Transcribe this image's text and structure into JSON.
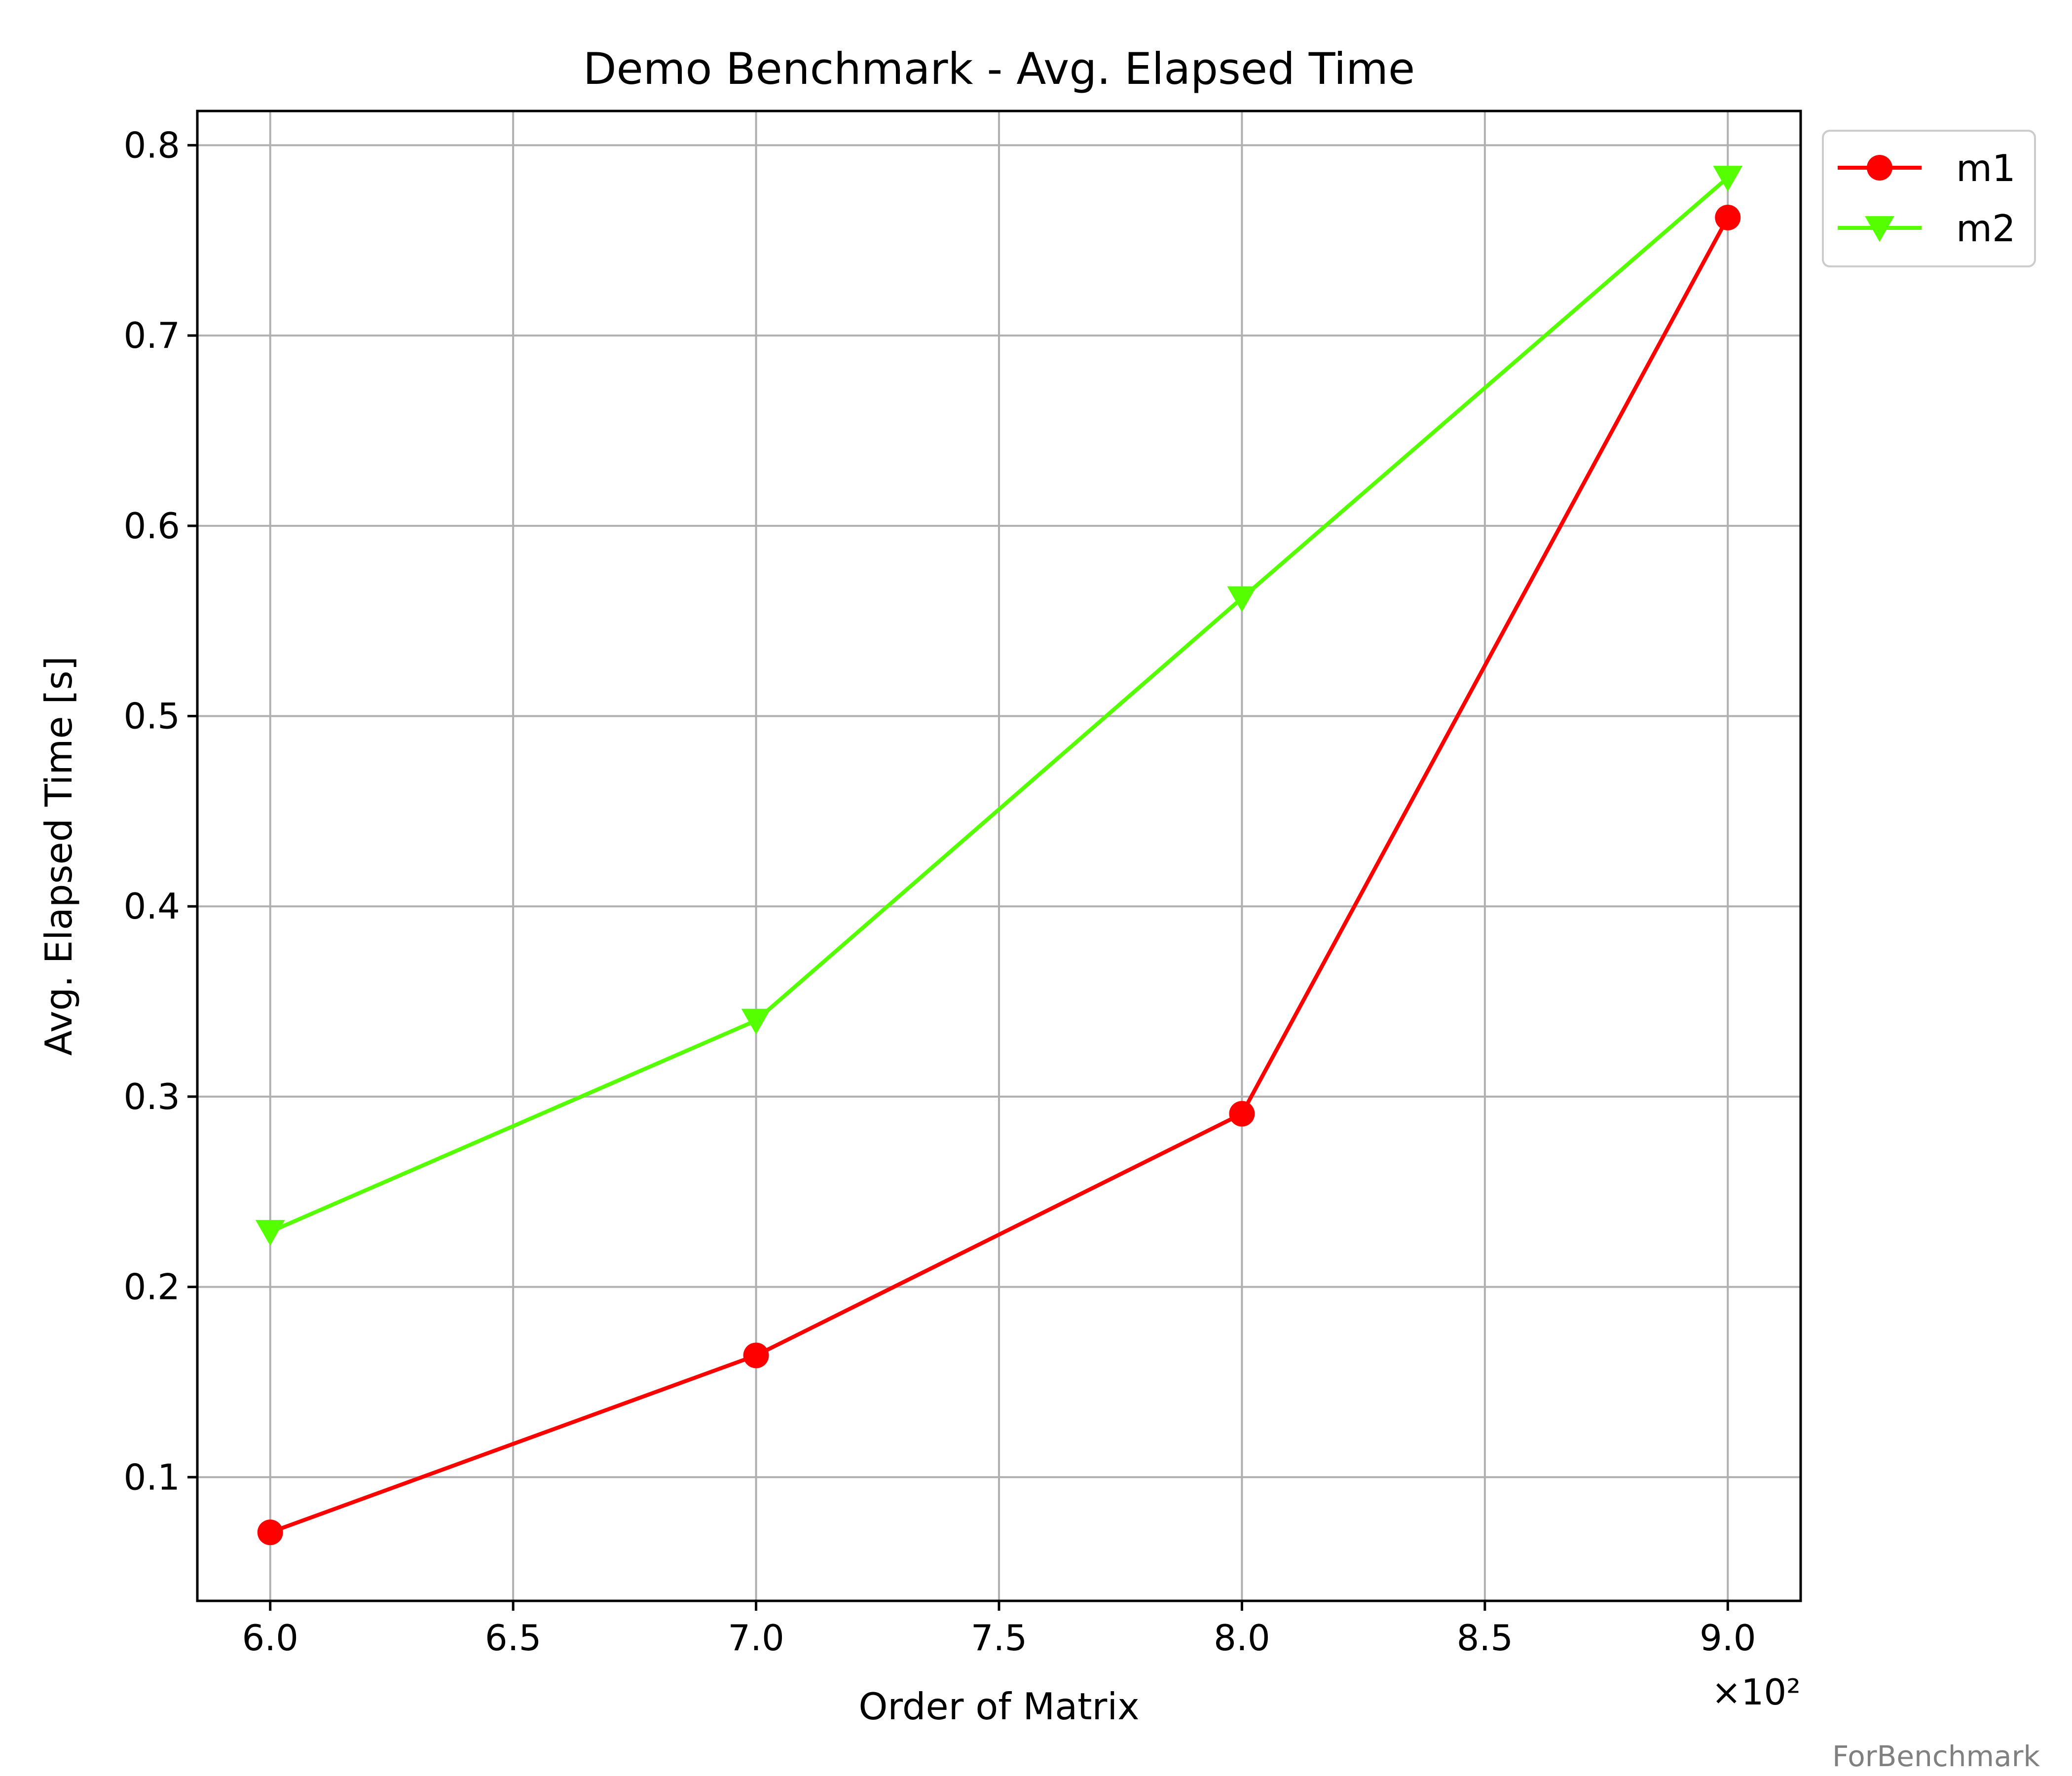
{
  "chart_data": {
    "type": "line",
    "title": "Demo Benchmark - Avg. Elapsed Time",
    "xlabel": "Order of Matrix",
    "ylabel": "Avg. Elapsed Time [s]",
    "x_offset_label": "×10²",
    "x": [
      600,
      700,
      800,
      900
    ],
    "x_ticks": [
      6.0,
      6.5,
      7.0,
      7.5,
      8.0,
      8.5,
      9.0
    ],
    "x_tick_labels": [
      "6.0",
      "6.5",
      "7.0",
      "7.5",
      "8.0",
      "8.5",
      "9.0"
    ],
    "y_ticks": [
      0.1,
      0.2,
      0.3,
      0.4,
      0.5,
      0.6,
      0.7,
      0.8
    ],
    "y_tick_labels": [
      "0.1",
      "0.2",
      "0.3",
      "0.4",
      "0.5",
      "0.6",
      "0.7",
      "0.8"
    ],
    "xlim": [
      585,
      915
    ],
    "ylim": [
      0.035,
      0.818
    ],
    "grid": true,
    "legend_position": "outside upper right",
    "series": [
      {
        "name": "m1",
        "values": [
          0.071,
          0.164,
          0.291,
          0.762
        ],
        "color": "#ff0000",
        "marker": "circle"
      },
      {
        "name": "m2",
        "values": [
          0.229,
          0.34,
          0.562,
          0.783
        ],
        "color": "#55ff00",
        "marker": "triangle-down"
      }
    ]
  },
  "watermark": "ForBenchmark"
}
